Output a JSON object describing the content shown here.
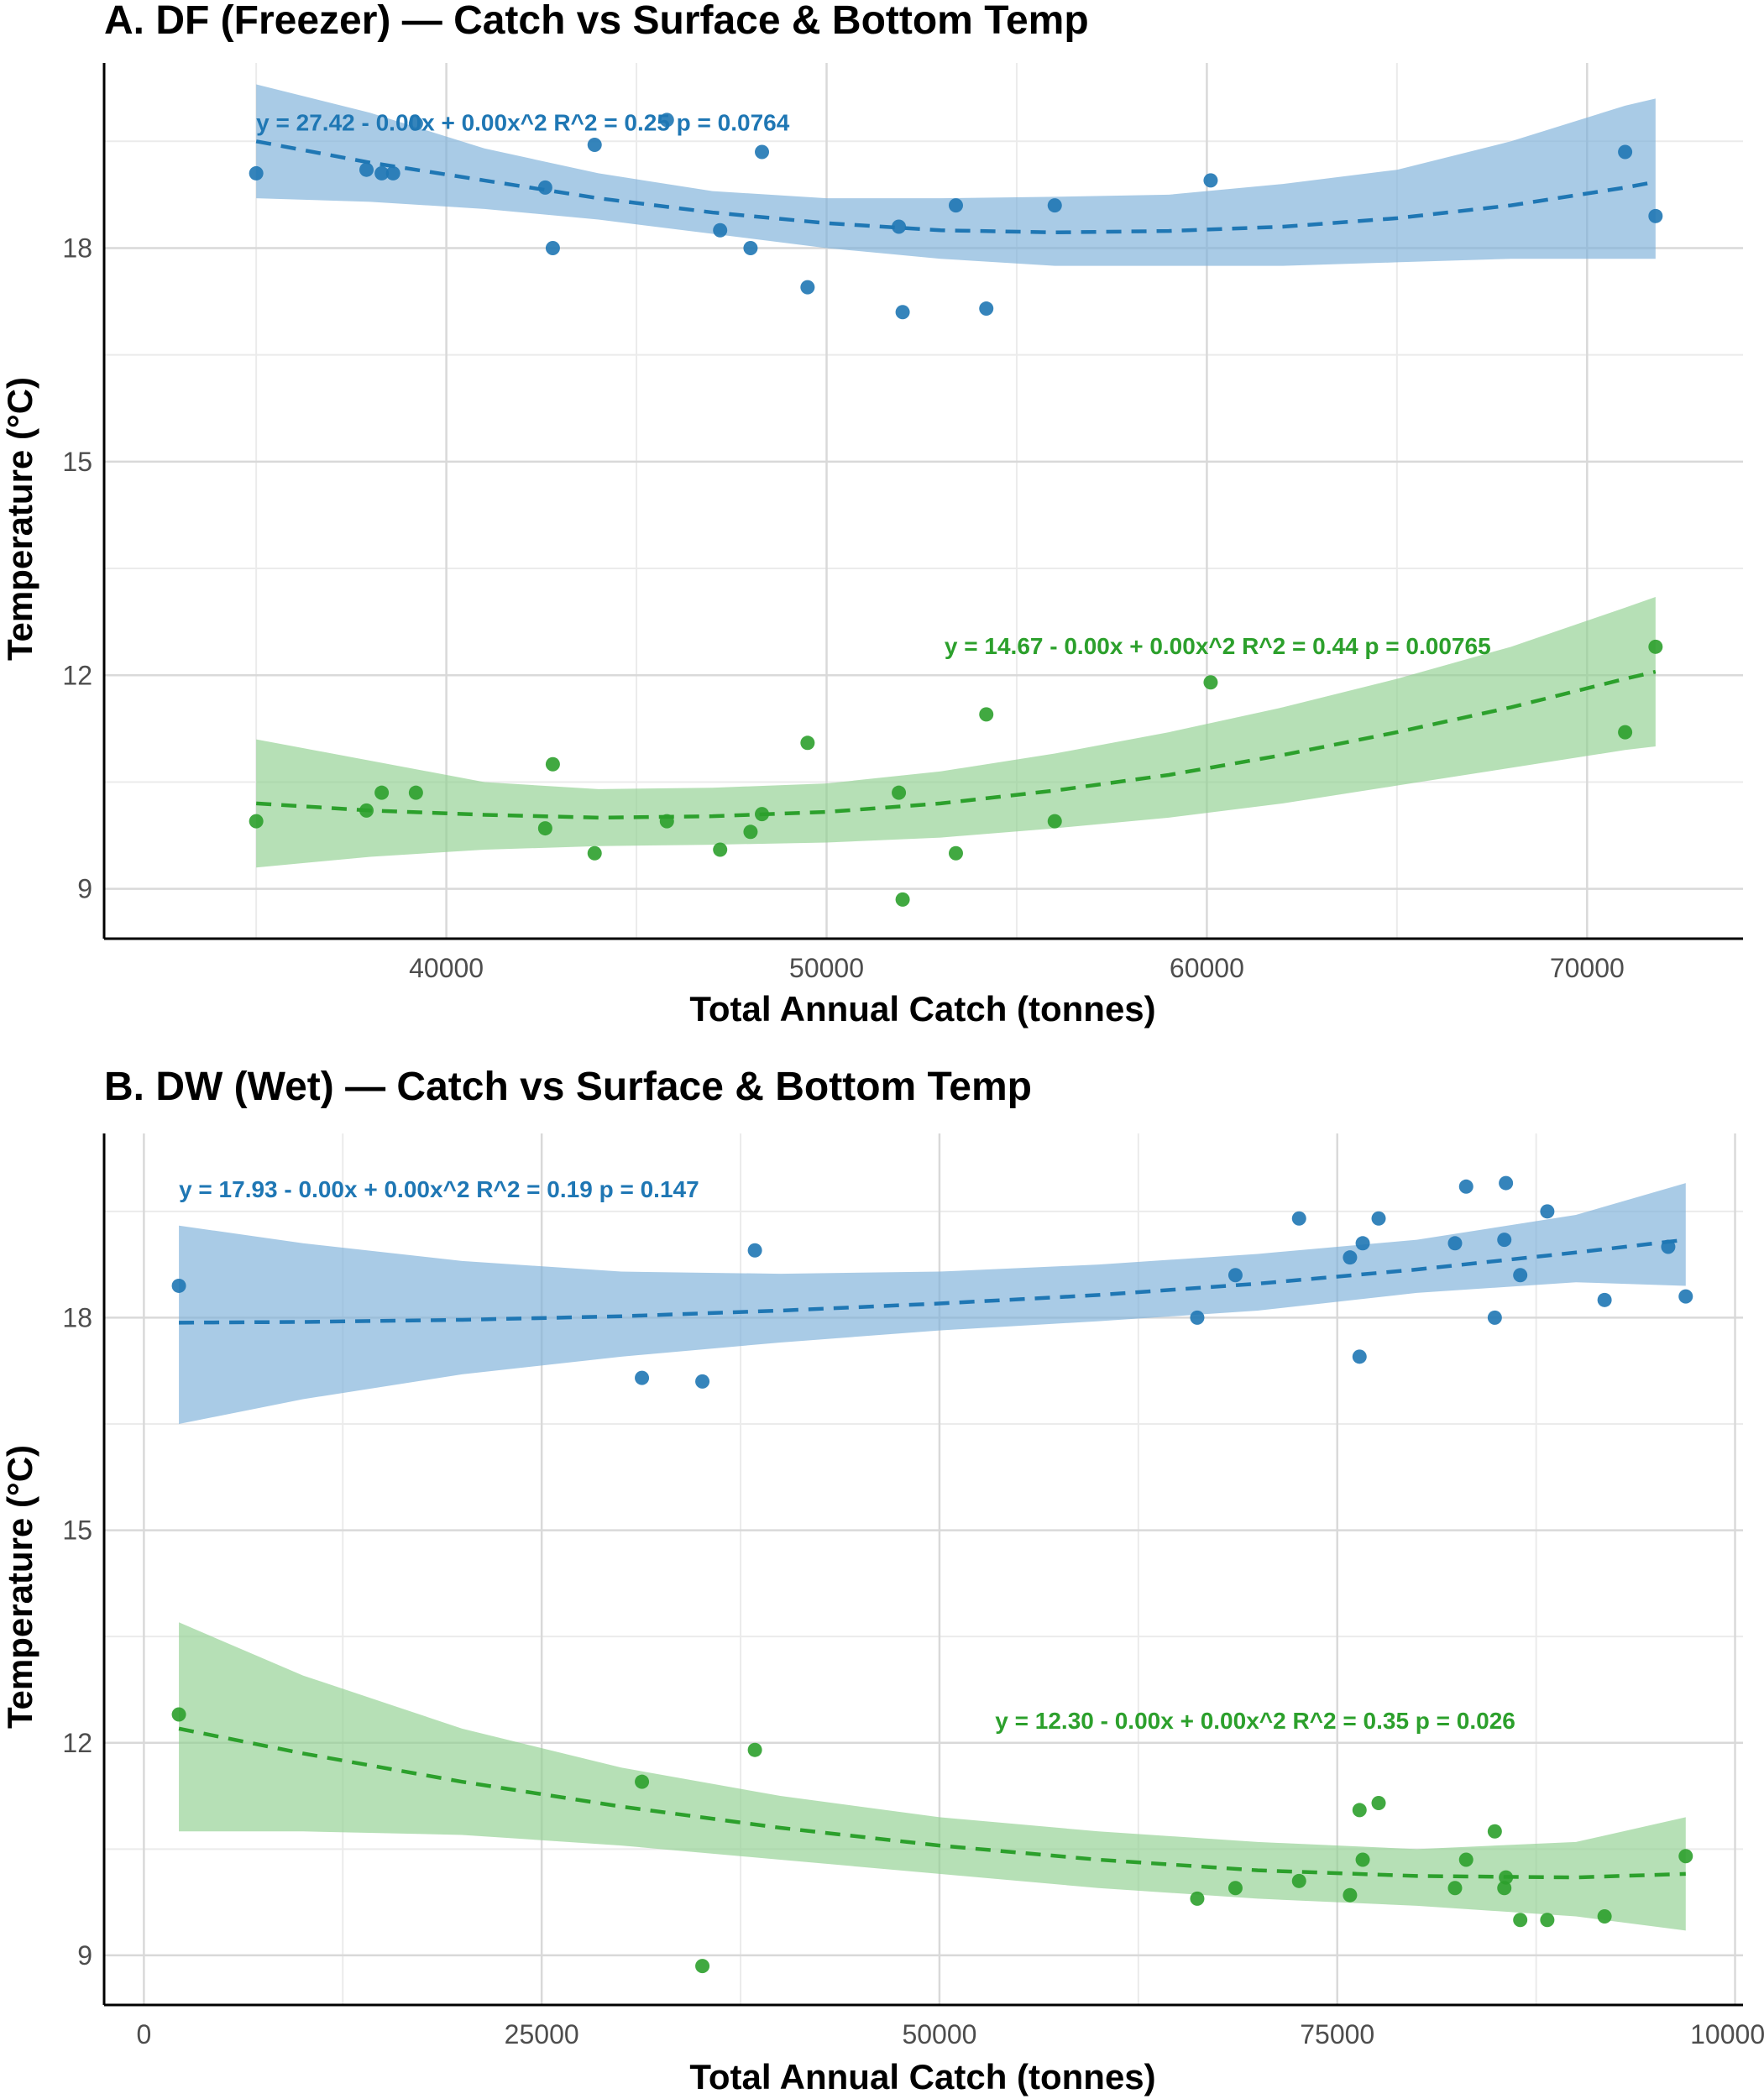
{
  "chart_data": [
    {
      "id": "A",
      "type": "scatter",
      "title": "A. DF (Freezer) — Catch vs Surface & Bottom Temp",
      "xlabel": "Total Annual Catch (tonnes)",
      "ylabel": "Temperature (°C)",
      "xlim": [
        31000,
        74100
      ],
      "ylim": [
        8.3,
        20.6
      ],
      "x_ticks": [
        40000,
        50000,
        60000,
        70000
      ],
      "x_tick_labels": [
        "40000",
        "50000",
        "60000",
        "70000"
      ],
      "y_ticks": [
        9,
        12,
        15,
        18
      ],
      "y_tick_labels": [
        "9",
        "12",
        "15",
        "18"
      ],
      "grid": true,
      "series": [
        {
          "group": "surface",
          "color": "#1f77b4",
          "band_color": "#7bafd9",
          "points": [
            [
              35000,
              19.05
            ],
            [
              37900,
              19.1
            ],
            [
              38300,
              19.05
            ],
            [
              38600,
              19.05
            ],
            [
              39200,
              19.75
            ],
            [
              42600,
              18.85
            ],
            [
              42800,
              18.0
            ],
            [
              43900,
              19.45
            ],
            [
              45800,
              19.8
            ],
            [
              47200,
              18.25
            ],
            [
              48000,
              18.0
            ],
            [
              48300,
              19.35
            ],
            [
              49500,
              17.45
            ],
            [
              51900,
              18.3
            ],
            [
              52000,
              17.1
            ],
            [
              53400,
              18.6
            ],
            [
              54200,
              17.15
            ],
            [
              56000,
              18.6
            ],
            [
              60100,
              18.95
            ],
            [
              71000,
              19.35
            ],
            [
              71800,
              18.45
            ]
          ],
          "fit": {
            "x": [
              35000,
              38000,
              41000,
              44000,
              47000,
              50000,
              53000,
              56000,
              59000,
              62000,
              65000,
              68000,
              71000,
              71800
            ],
            "y": [
              19.5,
              19.2,
              18.95,
              18.7,
              18.5,
              18.35,
              18.25,
              18.22,
              18.24,
              18.3,
              18.42,
              18.6,
              18.85,
              18.93
            ]
          },
          "band_lower": [
            18.7,
            18.65,
            18.55,
            18.4,
            18.2,
            18.0,
            17.85,
            17.75,
            17.75,
            17.75,
            17.8,
            17.85,
            17.85,
            17.85
          ],
          "band_upper": [
            20.3,
            19.9,
            19.4,
            19.05,
            18.8,
            18.7,
            18.7,
            18.72,
            18.75,
            18.9,
            19.1,
            19.5,
            20.0,
            20.1
          ],
          "equation": "y = 27.42 - 0.00x + 0.00x^2   R^2 = 0.25   p = 0.0764",
          "label_at": [
            35000,
            19.65
          ]
        },
        {
          "group": "bottom",
          "color": "#2ca02c",
          "band_color": "#8fcf8f",
          "points": [
            [
              35000,
              9.95
            ],
            [
              37900,
              10.1
            ],
            [
              38300,
              10.35
            ],
            [
              39200,
              10.35
            ],
            [
              42600,
              9.85
            ],
            [
              42800,
              10.75
            ],
            [
              43900,
              9.5
            ],
            [
              45800,
              9.95
            ],
            [
              47200,
              9.55
            ],
            [
              48000,
              9.8
            ],
            [
              48300,
              10.05
            ],
            [
              49500,
              11.05
            ],
            [
              51900,
              10.35
            ],
            [
              52000,
              8.85
            ],
            [
              53400,
              9.5
            ],
            [
              54200,
              11.45
            ],
            [
              56000,
              9.95
            ],
            [
              60100,
              11.9
            ],
            [
              71000,
              11.2
            ],
            [
              71800,
              12.4
            ]
          ],
          "fit": {
            "x": [
              35000,
              38000,
              41000,
              44000,
              47000,
              50000,
              53000,
              56000,
              59000,
              62000,
              65000,
              68000,
              71000,
              71800
            ],
            "y": [
              10.2,
              10.1,
              10.04,
              10.0,
              10.02,
              10.08,
              10.2,
              10.38,
              10.6,
              10.88,
              11.2,
              11.55,
              11.95,
              12.05
            ]
          },
          "band_lower": [
            9.3,
            9.45,
            9.55,
            9.6,
            9.62,
            9.65,
            9.72,
            9.85,
            10.0,
            10.2,
            10.45,
            10.7,
            10.95,
            11.0
          ],
          "band_upper": [
            11.1,
            10.8,
            10.5,
            10.4,
            10.42,
            10.48,
            10.65,
            10.9,
            11.2,
            11.55,
            11.95,
            12.4,
            12.95,
            13.1
          ],
          "equation": "y = 14.67 - 0.00x + 0.00x^2   R^2 = 0.44   p = 0.00765",
          "label_at": [
            53100,
            12.3
          ]
        }
      ]
    },
    {
      "id": "B",
      "type": "scatter",
      "title": "B. DW (Wet) — Catch vs Surface & Bottom Temp",
      "xlabel": "Total Annual Catch (tonnes)",
      "ylabel": "Temperature (°C)",
      "xlim": [
        -2500,
        100500
      ],
      "ylim": [
        8.3,
        20.6
      ],
      "x_ticks": [
        0,
        25000,
        50000,
        75000,
        100000
      ],
      "x_tick_labels": [
        "0",
        "25000",
        "50000",
        "75000",
        "100000"
      ],
      "y_ticks": [
        9,
        12,
        15,
        18
      ],
      "y_tick_labels": [
        "9",
        "12",
        "15",
        "18"
      ],
      "grid": true,
      "series": [
        {
          "group": "surface",
          "color": "#1f77b4",
          "band_color": "#7bafd9",
          "points": [
            [
              2200,
              18.45
            ],
            [
              31300,
              17.15
            ],
            [
              35100,
              17.1
            ],
            [
              38400,
              18.95
            ],
            [
              66200,
              18.0
            ],
            [
              68600,
              18.6
            ],
            [
              72600,
              19.4
            ],
            [
              75800,
              18.85
            ],
            [
              76400,
              17.45
            ],
            [
              76600,
              19.05
            ],
            [
              77600,
              19.4
            ],
            [
              82400,
              19.05
            ],
            [
              83100,
              19.85
            ],
            [
              84900,
              18.0
            ],
            [
              85500,
              19.1
            ],
            [
              85600,
              19.9
            ],
            [
              86500,
              18.6
            ],
            [
              88200,
              19.5
            ],
            [
              91800,
              18.25
            ],
            [
              95800,
              19.0
            ],
            [
              96900,
              18.3
            ]
          ],
          "fit": {
            "x": [
              2200,
              10000,
              20000,
              30000,
              40000,
              50000,
              60000,
              70000,
              80000,
              90000,
              96900
            ],
            "y": [
              17.93,
              17.94,
              17.97,
              18.02,
              18.1,
              18.2,
              18.32,
              18.48,
              18.68,
              18.92,
              19.1
            ]
          },
          "band_lower": [
            16.5,
            16.85,
            17.2,
            17.45,
            17.65,
            17.82,
            17.95,
            18.1,
            18.35,
            18.5,
            18.45
          ],
          "band_upper": [
            19.3,
            19.05,
            18.8,
            18.65,
            18.62,
            18.65,
            18.75,
            18.9,
            19.1,
            19.45,
            19.9
          ],
          "equation": "y = 17.93 - 0.00x + 0.00x^2   R^2 = 0.19   p = 0.147",
          "label_at": [
            2200,
            19.7
          ]
        },
        {
          "group": "bottom",
          "color": "#2ca02c",
          "band_color": "#8fcf8f",
          "points": [
            [
              2200,
              12.4
            ],
            [
              31300,
              11.45
            ],
            [
              35100,
              8.85
            ],
            [
              38400,
              11.9
            ],
            [
              66200,
              9.8
            ],
            [
              68600,
              9.95
            ],
            [
              72600,
              10.05
            ],
            [
              75800,
              9.85
            ],
            [
              76400,
              11.05
            ],
            [
              76600,
              10.35
            ],
            [
              77600,
              11.15
            ],
            [
              82400,
              9.95
            ],
            [
              83100,
              10.35
            ],
            [
              84900,
              10.75
            ],
            [
              85500,
              9.95
            ],
            [
              85600,
              10.1
            ],
            [
              86500,
              9.5
            ],
            [
              88200,
              9.5
            ],
            [
              91800,
              9.55
            ],
            [
              96900,
              10.4
            ]
          ],
          "fit": {
            "x": [
              2200,
              10000,
              20000,
              30000,
              40000,
              50000,
              60000,
              70000,
              80000,
              90000,
              96900
            ],
            "y": [
              12.2,
              11.85,
              11.45,
              11.1,
              10.8,
              10.55,
              10.35,
              10.2,
              10.12,
              10.1,
              10.15
            ]
          },
          "band_lower": [
            10.75,
            10.75,
            10.7,
            10.55,
            10.35,
            10.15,
            9.95,
            9.8,
            9.7,
            9.55,
            9.35
          ],
          "band_upper": [
            13.7,
            12.95,
            12.2,
            11.65,
            11.25,
            10.95,
            10.75,
            10.6,
            10.5,
            10.6,
            10.95
          ],
          "equation": "y = 12.30 - 0.00x + 0.00x^2   R^2 = 0.35   p = 0.026",
          "label_at": [
            53500,
            12.2
          ]
        }
      ]
    }
  ]
}
